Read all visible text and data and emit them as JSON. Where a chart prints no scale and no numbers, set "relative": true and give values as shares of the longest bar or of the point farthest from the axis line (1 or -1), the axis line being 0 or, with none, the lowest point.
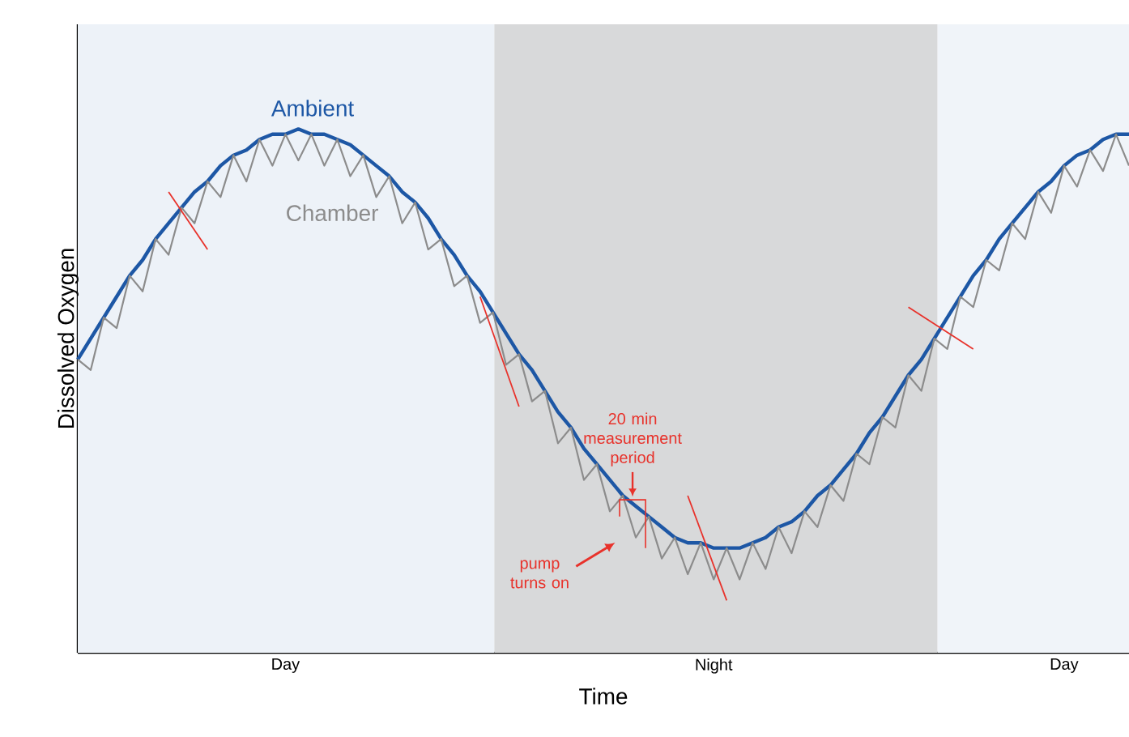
{
  "chart_data": {
    "type": "line",
    "relative": true,
    "xlabel": "Time",
    "ylabel": "Dissolved Oxygen",
    "categories": [
      null,
      null,
      null,
      null,
      null,
      null,
      null,
      null,
      null,
      null,
      null,
      null,
      null,
      null,
      null,
      null,
      "Day",
      null,
      null,
      null,
      null,
      null,
      null,
      null,
      null,
      null,
      null,
      null,
      null,
      null,
      null,
      null,
      null,
      null,
      null,
      null,
      null,
      null,
      null,
      null,
      null,
      null,
      null,
      null,
      null,
      null,
      null,
      null,
      null,
      "Night",
      null,
      null,
      null,
      null,
      null,
      null,
      null,
      null,
      null,
      null,
      null,
      null,
      null,
      null,
      null,
      null,
      null,
      null,
      null,
      null,
      null,
      null,
      null,
      null,
      null,
      null,
      "Day",
      null,
      null,
      null,
      null,
      null
    ],
    "series": [
      {
        "name": "Ambient",
        "color": "#1d57a5",
        "values": [
          0.56,
          0.6,
          0.64,
          0.68,
          0.72,
          0.75,
          0.79,
          0.82,
          0.85,
          0.88,
          0.9,
          0.93,
          0.95,
          0.96,
          0.98,
          0.99,
          0.99,
          1.0,
          0.99,
          0.99,
          0.98,
          0.97,
          0.95,
          0.93,
          0.91,
          0.88,
          0.86,
          0.83,
          0.79,
          0.76,
          0.72,
          0.69,
          0.65,
          0.61,
          0.57,
          0.54,
          0.5,
          0.46,
          0.43,
          0.39,
          0.36,
          0.33,
          0.3,
          0.28,
          0.26,
          0.24,
          0.22,
          0.21,
          0.21,
          0.2,
          0.2,
          0.2,
          0.21,
          0.22,
          0.24,
          0.25,
          0.27,
          0.3,
          0.32,
          0.35,
          0.38,
          0.42,
          0.45,
          0.49,
          0.53,
          0.56,
          0.6,
          0.64,
          0.68,
          0.72,
          0.75,
          0.79,
          0.82,
          0.85,
          0.88,
          0.9,
          0.93,
          0.95,
          0.96,
          0.98,
          0.99,
          0.99
        ]
      },
      {
        "name": "Chamber",
        "color": "#8c8c8c",
        "values": [
          0.56,
          0.54,
          0.64,
          0.62,
          0.72,
          0.69,
          0.79,
          0.76,
          0.85,
          0.82,
          0.9,
          0.87,
          0.95,
          0.9,
          0.98,
          0.93,
          0.99,
          0.94,
          0.99,
          0.93,
          0.98,
          0.91,
          0.95,
          0.87,
          0.91,
          0.82,
          0.86,
          0.77,
          0.79,
          0.7,
          0.72,
          0.63,
          0.65,
          0.55,
          0.57,
          0.48,
          0.5,
          0.4,
          0.43,
          0.33,
          0.36,
          0.27,
          0.3,
          0.22,
          0.26,
          0.18,
          0.22,
          0.15,
          0.21,
          0.14,
          0.2,
          0.14,
          0.21,
          0.16,
          0.24,
          0.19,
          0.27,
          0.24,
          0.32,
          0.29,
          0.38,
          0.36,
          0.45,
          0.43,
          0.53,
          0.5,
          0.6,
          0.58,
          0.68,
          0.66,
          0.75,
          0.73,
          0.82,
          0.79,
          0.88,
          0.84,
          0.93,
          0.89,
          0.96,
          0.92,
          0.99,
          0.93
        ]
      },
      {
        "color": "#e8322b",
        "values": [
          null,
          null,
          null,
          null,
          null,
          null,
          null,
          0.88,
          null,
          null,
          0.77,
          null,
          null,
          null,
          null,
          null,
          null,
          null,
          null,
          null,
          null,
          null,
          null,
          null,
          null,
          null,
          null,
          null,
          null,
          null,
          null,
          null,
          null,
          null,
          null,
          null,
          null,
          null,
          null,
          null,
          null,
          null,
          null,
          null,
          null,
          null,
          null,
          null,
          null,
          null,
          null,
          null,
          null,
          null,
          null,
          null,
          null,
          null,
          null,
          null,
          null,
          null,
          null,
          null,
          null,
          null,
          null,
          null,
          null,
          null,
          null,
          null,
          null,
          null,
          null,
          null,
          null,
          null,
          null,
          null,
          null,
          null
        ]
      },
      {
        "color": "#e8322b",
        "values": [
          null,
          null,
          null,
          null,
          null,
          null,
          null,
          null,
          null,
          null,
          null,
          null,
          null,
          null,
          null,
          null,
          null,
          null,
          null,
          null,
          null,
          null,
          null,
          null,
          null,
          null,
          null,
          null,
          null,
          null,
          null,
          0.68,
          null,
          null,
          0.47,
          null,
          null,
          null,
          null,
          null,
          null,
          null,
          null,
          null,
          null,
          null,
          null,
          null,
          null,
          null,
          null,
          null,
          null,
          null,
          null,
          null,
          null,
          null,
          null,
          null,
          null,
          null,
          null,
          null,
          null,
          null,
          null,
          null,
          null,
          null,
          null,
          null,
          null,
          null,
          null,
          null,
          null,
          null,
          null,
          null,
          null,
          null
        ]
      },
      {
        "color": "#e8322b",
        "values": [
          null,
          null,
          null,
          null,
          null,
          null,
          null,
          null,
          null,
          null,
          null,
          null,
          null,
          null,
          null,
          null,
          null,
          null,
          null,
          null,
          null,
          null,
          null,
          null,
          null,
          null,
          null,
          null,
          null,
          null,
          null,
          null,
          null,
          null,
          null,
          null,
          null,
          null,
          null,
          null,
          null,
          null,
          null,
          null,
          null,
          null,
          null,
          0.3,
          null,
          null,
          0.1,
          null,
          null,
          null,
          null,
          null,
          null,
          null,
          null,
          null,
          null,
          null,
          null,
          null,
          null,
          null,
          null,
          null,
          null,
          null,
          null,
          null,
          null,
          null,
          null,
          null,
          null,
          null,
          null,
          null,
          null,
          null
        ]
      },
      {
        "color": "#e8322b",
        "values": [
          null,
          null,
          null,
          null,
          null,
          null,
          null,
          null,
          null,
          null,
          null,
          null,
          null,
          null,
          null,
          null,
          null,
          null,
          null,
          null,
          null,
          null,
          null,
          null,
          null,
          null,
          null,
          null,
          null,
          null,
          null,
          null,
          null,
          null,
          null,
          null,
          null,
          null,
          null,
          null,
          null,
          null,
          null,
          null,
          null,
          null,
          null,
          null,
          null,
          null,
          null,
          null,
          null,
          null,
          null,
          null,
          null,
          null,
          null,
          null,
          null,
          null,
          null,
          null,
          0.66,
          null,
          null,
          null,
          null,
          0.58,
          null,
          null,
          null,
          null,
          null,
          null,
          null,
          null,
          null,
          null,
          null,
          null
        ]
      }
    ],
    "annotations": [
      "20 min measurement period",
      "pump turns on"
    ]
  }
}
